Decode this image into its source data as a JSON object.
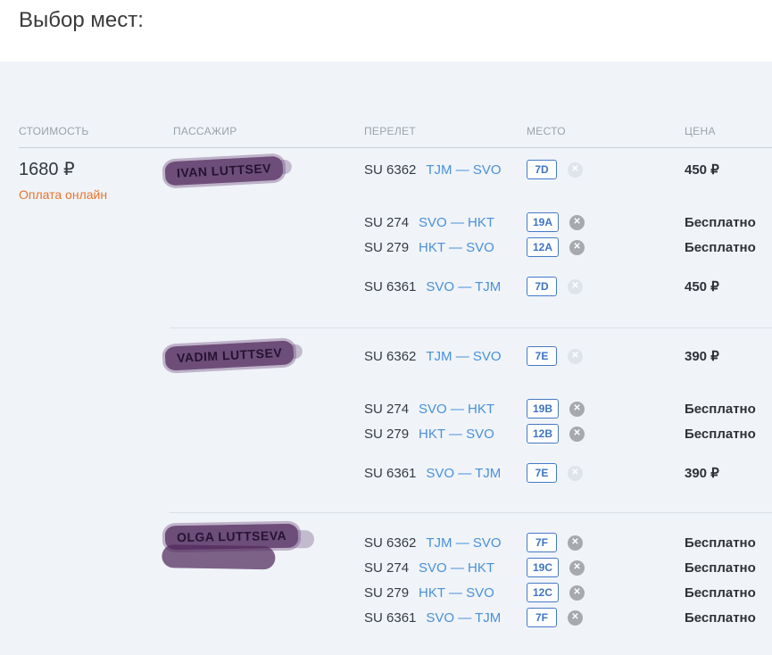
{
  "page": {
    "title": "Выбор мест:"
  },
  "table": {
    "columns": {
      "cost": "СТОИМОСТЬ",
      "passenger": "ПАССАЖИР",
      "flight": "ПЕРЕЛЕТ",
      "seat": "МЕСТО",
      "price": "ЦЕНА"
    }
  },
  "cost": {
    "total": "1680 ₽",
    "note": "Оплата онлайн"
  },
  "icons": {
    "remove_glyph": "✕"
  },
  "colors": {
    "panel_bg": "#F0F4F9",
    "link_blue": "#4A90D9",
    "badge_blue": "#3E74C4",
    "orange": "#E9732A",
    "remove_active": "#A6A9AE",
    "remove_disabled": "#DFE4EB",
    "redaction_purple": "#502A5C"
  },
  "passengers": [
    {
      "name": "IVAN LUTTSEV",
      "flights": [
        {
          "flight": "SU 6362",
          "route": "TJM — SVO",
          "seat": "7D",
          "price": "450 ₽",
          "remove_disabled": true
        },
        {
          "flight": "SU 274",
          "route": "SVO — HKT",
          "seat": "19A",
          "price": "Бесплатно",
          "remove_disabled": false
        },
        {
          "flight": "SU 279",
          "route": "HKT — SVO",
          "seat": "12A",
          "price": "Бесплатно",
          "remove_disabled": false
        },
        {
          "flight": "SU 6361",
          "route": "SVO — TJM",
          "seat": "7D",
          "price": "450 ₽",
          "remove_disabled": true
        }
      ]
    },
    {
      "name": "VADIM LUTTSEV",
      "flights": [
        {
          "flight": "SU 6362",
          "route": "TJM — SVO",
          "seat": "7E",
          "price": "390 ₽",
          "remove_disabled": true
        },
        {
          "flight": "SU 274",
          "route": "SVO — HKT",
          "seat": "19B",
          "price": "Бесплатно",
          "remove_disabled": false
        },
        {
          "flight": "SU 279",
          "route": "HKT — SVO",
          "seat": "12B",
          "price": "Бесплатно",
          "remove_disabled": false
        },
        {
          "flight": "SU 6361",
          "route": "SVO — TJM",
          "seat": "7E",
          "price": "390 ₽",
          "remove_disabled": true
        }
      ]
    },
    {
      "name": "OLGA LUTTSEVA",
      "flights": [
        {
          "flight": "SU 6362",
          "route": "TJM — SVO",
          "seat": "7F",
          "price": "Бесплатно",
          "remove_disabled": false
        },
        {
          "flight": "SU 274",
          "route": "SVO — HKT",
          "seat": "19C",
          "price": "Бесплатно",
          "remove_disabled": false
        },
        {
          "flight": "SU 279",
          "route": "HKT — SVO",
          "seat": "12C",
          "price": "Бесплатно",
          "remove_disabled": false
        },
        {
          "flight": "SU 6361",
          "route": "SVO — TJM",
          "seat": "7F",
          "price": "Бесплатно",
          "remove_disabled": false
        }
      ]
    }
  ]
}
